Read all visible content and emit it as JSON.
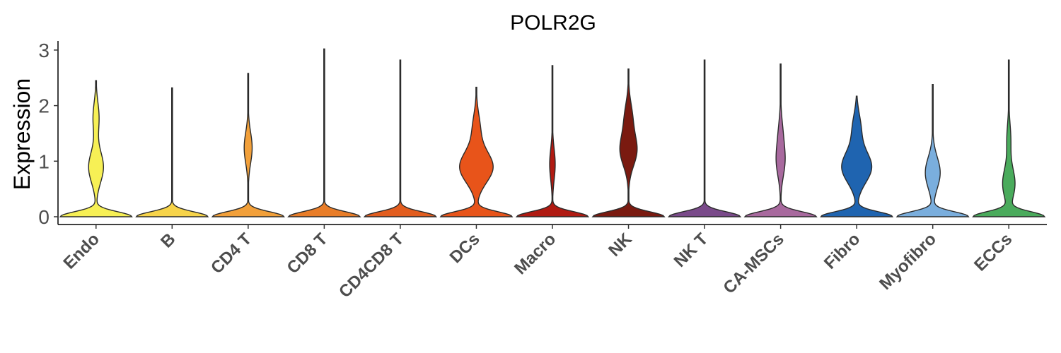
{
  "chart_data": {
    "type": "violin",
    "title": "POLR2G",
    "xlabel": "",
    "ylabel": "Expression",
    "ylim": [
      0,
      3
    ],
    "yticks": [
      "0",
      "1",
      "2",
      "3"
    ],
    "legend": "none",
    "grid": false,
    "categories": [
      "Endo",
      "B",
      "CD4 T",
      "CD8 T",
      "CD4CD8 T",
      "DCs",
      "Macro",
      "NK",
      "NK T",
      "CA-MSCs",
      "Fibro",
      "Myofibro",
      "ECCs"
    ],
    "colors": [
      "#f7f055",
      "#f7d44a",
      "#f2a03a",
      "#e97d28",
      "#e25d1f",
      "#e8541a",
      "#b01a12",
      "#7a1a10",
      "#7a4a8a",
      "#a8699e",
      "#1f64b0",
      "#7aaedd",
      "#4aab5c"
    ],
    "max_values": [
      2.45,
      2.32,
      2.58,
      3.02,
      2.82,
      2.33,
      2.72,
      2.66,
      2.82,
      2.75,
      2.17,
      2.38,
      2.82
    ],
    "density_peaks": [
      [
        [
          0.0,
          1.0
        ],
        [
          0.9,
          0.22
        ],
        [
          1.8,
          0.1
        ]
      ],
      [
        [
          0.0,
          1.0
        ]
      ],
      [
        [
          0.0,
          1.0
        ],
        [
          1.25,
          0.12
        ]
      ],
      [
        [
          0.0,
          1.0
        ]
      ],
      [
        [
          0.0,
          1.0
        ]
      ],
      [
        [
          0.0,
          1.0
        ],
        [
          0.9,
          0.5
        ],
        [
          1.6,
          0.12
        ]
      ],
      [
        [
          0.0,
          1.0
        ],
        [
          0.95,
          0.08
        ]
      ],
      [
        [
          0.0,
          1.0
        ],
        [
          1.2,
          0.25
        ],
        [
          1.8,
          0.12
        ]
      ],
      [
        [
          0.0,
          1.0
        ]
      ],
      [
        [
          0.0,
          1.0
        ],
        [
          1.0,
          0.12
        ],
        [
          1.5,
          0.06
        ]
      ],
      [
        [
          0.0,
          1.0
        ],
        [
          0.9,
          0.45
        ],
        [
          1.6,
          0.14
        ]
      ],
      [
        [
          0.0,
          1.0
        ],
        [
          0.8,
          0.22
        ]
      ],
      [
        [
          0.0,
          1.0
        ],
        [
          0.6,
          0.18
        ],
        [
          1.4,
          0.06
        ]
      ]
    ]
  }
}
